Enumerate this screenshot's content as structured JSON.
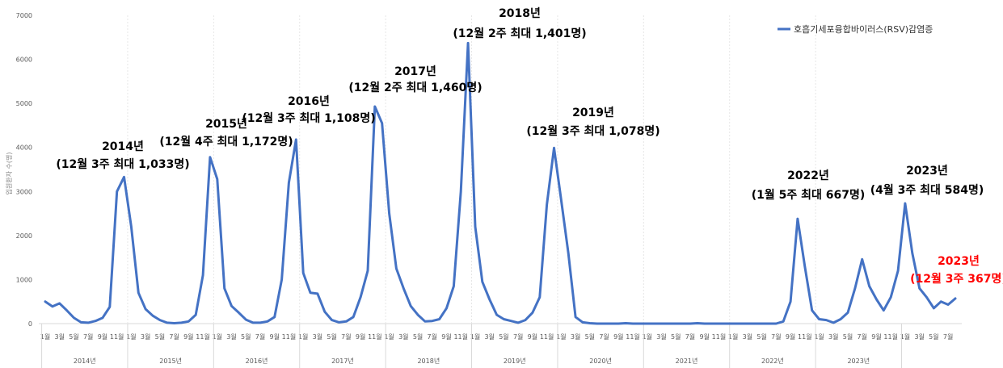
{
  "chart_data": {
    "type": "line",
    "ylabel": "입원환자 수(명)",
    "ylim": [
      0,
      7000
    ],
    "yticks": [
      0,
      1000,
      2000,
      3000,
      4000,
      5000,
      6000,
      7000
    ],
    "x_month_labels": [
      "1월",
      "3월",
      "5월",
      "7월",
      "9월",
      "11월"
    ],
    "years": [
      "2014년",
      "2015년",
      "2016년",
      "2017년",
      "2018년",
      "2019년",
      "2020년",
      "2021년",
      "2022년",
      "2023년"
    ],
    "grid": false,
    "legend": "top-right",
    "color": "#4472c4",
    "series": [
      {
        "name": "호흡기세포융합바이러스(RSV)감염증",
        "values": [
          500,
          390,
          460,
          300,
          130,
          30,
          20,
          60,
          130,
          380,
          3000,
          3330,
          2200,
          700,
          330,
          180,
          80,
          20,
          10,
          20,
          50,
          200,
          1100,
          3780,
          3280,
          800,
          400,
          250,
          90,
          20,
          20,
          50,
          150,
          1000,
          3200,
          4180,
          1150,
          700,
          680,
          270,
          80,
          30,
          50,
          150,
          600,
          1200,
          4930,
          4550,
          2500,
          1250,
          800,
          400,
          200,
          50,
          60,
          100,
          350,
          850,
          3000,
          6370,
          2200,
          950,
          550,
          200,
          100,
          60,
          20,
          80,
          250,
          600,
          2700,
          3990,
          2800,
          1600,
          150,
          30,
          10,
          0,
          0,
          0,
          0,
          10,
          0,
          0,
          0,
          0,
          0,
          0,
          0,
          0,
          0,
          10,
          0,
          0,
          0,
          0,
          0,
          0,
          0,
          0,
          0,
          0,
          0,
          50,
          500,
          2380,
          1300,
          300,
          100,
          80,
          20,
          100,
          250,
          800,
          1460,
          850,
          550,
          300,
          600,
          1200,
          2730,
          1600,
          800,
          600,
          350,
          500,
          430,
          570
        ]
      }
    ],
    "annotations": [
      {
        "year": "2014년",
        "detail": "(12월 3주 최대 1,033명)",
        "index": 11
      },
      {
        "year": "2015년",
        "detail": "(12월 4주 최대 1,172명)",
        "index": 23
      },
      {
        "year": "2016년",
        "detail": "(12월 3주 최대 1,108명)",
        "index": 35
      },
      {
        "year": "2017년",
        "detail": "(12월 2주 최대 1,460명)",
        "index": 46
      },
      {
        "year": "2018년",
        "detail": "(12월 2주 최대 1,401명)",
        "index": 59
      },
      {
        "year": "2019년",
        "detail": "(12월 3주 최대 1,078명)",
        "index": 71
      },
      {
        "year": "2022년",
        "detail": "(1월 5주 최대 667명)",
        "index": 108
      },
      {
        "year": "2023년",
        "detail": "(4월 3주 최대 584명)",
        "index": 122
      },
      {
        "year": "2023년",
        "detail": "(12월 3주 367명)",
        "index": 131,
        "highlight": "#ff0000"
      }
    ]
  }
}
